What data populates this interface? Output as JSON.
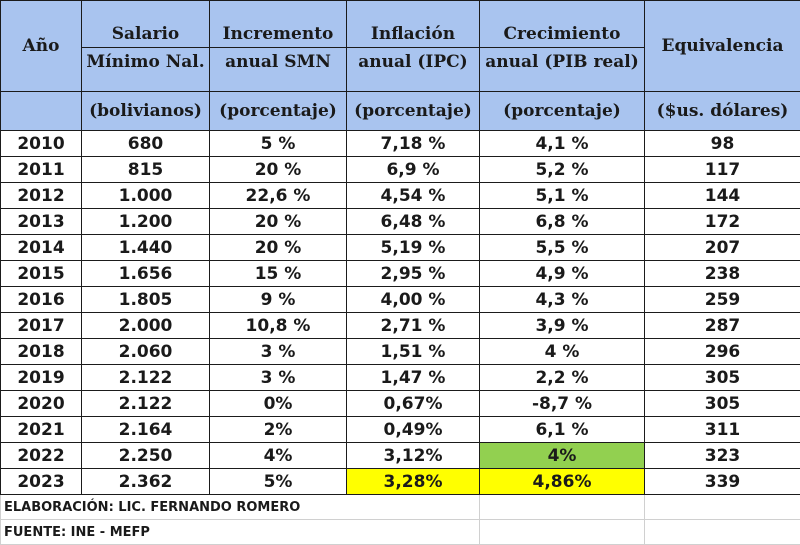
{
  "headers": {
    "year": "Año",
    "salary": {
      "l1": "Salario",
      "l2": "Mínimo Nal.",
      "unit": "(bolivianos)"
    },
    "increase": {
      "l1": "Incremento",
      "l2": "anual SMN",
      "unit": "(porcentaje)"
    },
    "inflation": {
      "l1": "Inflación",
      "l2": "anual (IPC)",
      "unit": "(porcentaje)"
    },
    "growth": {
      "l1": "Crecimiento",
      "l2": "anual (PIB real)",
      "unit": "(porcentaje)"
    },
    "equiv": {
      "l1": "Equivalencia",
      "unit": "($us. dólares)"
    }
  },
  "rows": [
    {
      "year": "2010",
      "salary": "680",
      "increase": "5 %",
      "inflation": "7,18 %",
      "growth": "4,1 %",
      "usd": "98"
    },
    {
      "year": "2011",
      "salary": "815",
      "increase": "20 %",
      "inflation": "6,9 %",
      "growth": "5,2 %",
      "usd": "117"
    },
    {
      "year": "2012",
      "salary": "1.000",
      "increase": "22,6 %",
      "inflation": "4,54 %",
      "growth": "5,1 %",
      "usd": "144"
    },
    {
      "year": "2013",
      "salary": "1.200",
      "increase": "20 %",
      "inflation": "6,48 %",
      "growth": "6,8 %",
      "usd": "172"
    },
    {
      "year": "2014",
      "salary": "1.440",
      "increase": "20 %",
      "inflation": "5,19 %",
      "growth": "5,5 %",
      "usd": "207"
    },
    {
      "year": "2015",
      "salary": "1.656",
      "increase": "15 %",
      "inflation": "2,95 %",
      "growth": "4,9 %",
      "usd": "238"
    },
    {
      "year": "2016",
      "salary": "1.805",
      "increase": "9 %",
      "inflation": "4,00 %",
      "growth": "4,3 %",
      "usd": "259"
    },
    {
      "year": "2017",
      "salary": "2.000",
      "increase": "10,8 %",
      "inflation": "2,71 %",
      "growth": "3,9 %",
      "usd": "287"
    },
    {
      "year": "2018",
      "salary": "2.060",
      "increase": "3 %",
      "inflation": "1,51 %",
      "growth": "4 %",
      "usd": "296"
    },
    {
      "year": "2019",
      "salary": "2.122",
      "increase": "3 %",
      "inflation": "1,47 %",
      "growth": "2,2 %",
      "usd": "305"
    },
    {
      "year": "2020",
      "salary": "2.122",
      "increase": "0%",
      "inflation": "0,67%",
      "growth": "-8,7 %",
      "usd": "305"
    },
    {
      "year": "2021",
      "salary": "2.164",
      "increase": "2%",
      "inflation": "0,49%",
      "growth": "6,1 %",
      "usd": "311"
    },
    {
      "year": "2022",
      "salary": "2.250",
      "increase": "4%",
      "inflation": "3,12%",
      "growth": "4%",
      "usd": "323"
    },
    {
      "year": "2023",
      "salary": "2.362",
      "increase": "5%",
      "inflation": "3,28%",
      "growth": "4,86%",
      "usd": "339"
    }
  ],
  "highlight_colors": {
    "header": "#a9c4ef",
    "yellow": "#ffff00",
    "green": "#92d050"
  },
  "footer": {
    "credit": "ELABORACIÓN: LIC. FERNANDO ROMERO",
    "source": "FUENTE: INE - MEFP"
  }
}
